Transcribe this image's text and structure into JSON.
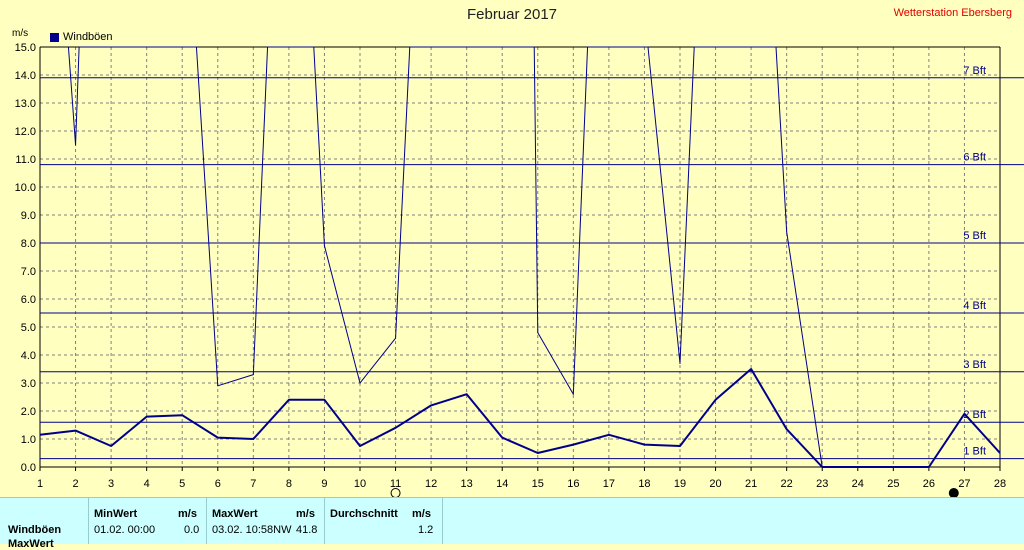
{
  "title": "Februar 2017",
  "station": "Wetterstation Ebersberg",
  "unit_label": "m/s",
  "legend_label": "Windböen",
  "colors": {
    "background": "#ffffc0",
    "series": "#00008b",
    "grid": "#808080",
    "station_text": "#e00000",
    "stats_bg": "#ccffff"
  },
  "chart_data": {
    "type": "line",
    "xlim": [
      1,
      28
    ],
    "ylim": [
      0,
      15
    ],
    "x_ticks": [
      "1",
      "2",
      "3",
      "4",
      "5",
      "6",
      "7",
      "8",
      "9",
      "10",
      "11",
      "12",
      "13",
      "14",
      "15",
      "16",
      "17",
      "18",
      "19",
      "20",
      "21",
      "22",
      "23",
      "24",
      "25",
      "26",
      "27",
      "28"
    ],
    "y_ticks": [
      "0.0",
      "1.0",
      "2.0",
      "3.0",
      "4.0",
      "5.0",
      "6.0",
      "7.0",
      "8.0",
      "9.0",
      "10.0",
      "11.0",
      "12.0",
      "13.0",
      "14.0",
      "15.0"
    ],
    "grid": true,
    "legend_position": "top-left",
    "beaufort_lines": [
      {
        "label": "1 Bft",
        "value": 0.3
      },
      {
        "label": "2 Bft",
        "value": 1.6
      },
      {
        "label": "3 Bft",
        "value": 3.4
      },
      {
        "label": "4 Bft",
        "value": 5.5
      },
      {
        "label": "5 Bft",
        "value": 8.0
      },
      {
        "label": "6 Bft",
        "value": 10.8
      },
      {
        "label": "7 Bft",
        "value": 13.9
      }
    ],
    "series": [
      {
        "name": "Windböen",
        "points": [
          [
            1,
            1.15
          ],
          [
            2,
            1.3
          ],
          [
            3,
            0.75
          ],
          [
            4,
            1.8
          ],
          [
            5,
            1.85
          ],
          [
            6,
            1.05
          ],
          [
            7,
            1.0
          ],
          [
            8,
            2.4
          ],
          [
            9,
            2.4
          ],
          [
            10,
            0.75
          ],
          [
            11,
            1.4
          ],
          [
            12,
            2.2
          ],
          [
            13,
            2.6
          ],
          [
            14,
            1.05
          ],
          [
            15,
            0.5
          ],
          [
            16,
            0.8
          ],
          [
            17,
            1.15
          ],
          [
            18,
            0.8
          ],
          [
            19,
            0.75
          ],
          [
            20,
            2.4
          ],
          [
            21,
            3.5
          ],
          [
            22,
            1.35
          ],
          [
            23,
            0.0
          ],
          [
            24,
            0.0
          ],
          [
            25,
            0.0
          ],
          [
            26,
            0.0
          ],
          [
            27,
            1.9
          ],
          [
            28,
            0.5
          ]
        ]
      },
      {
        "name": "",
        "points": [
          [
            1.8,
            15.0
          ],
          [
            2,
            11.5
          ],
          [
            2.1,
            15.0
          ],
          [
            5.4,
            15.0
          ],
          [
            6,
            2.9
          ],
          [
            7,
            3.3
          ],
          [
            7.4,
            15.0
          ],
          [
            8.7,
            15.0
          ],
          [
            9,
            7.9
          ],
          [
            10,
            3.0
          ],
          [
            11,
            4.6
          ],
          [
            11.4,
            15.0
          ],
          [
            14.9,
            15.0
          ],
          [
            15,
            4.8
          ],
          [
            16,
            2.6
          ],
          [
            16.4,
            15.0
          ],
          [
            18.1,
            15.0
          ],
          [
            19,
            3.7
          ],
          [
            19.4,
            15.0
          ],
          [
            21.7,
            15.0
          ],
          [
            22,
            8.4
          ],
          [
            23,
            0.0
          ]
        ]
      }
    ],
    "markers": [
      {
        "x": 11,
        "symbol": "open-circle"
      },
      {
        "x": 26.7,
        "symbol": "filled-circle"
      }
    ]
  },
  "stats": {
    "row_label": "Windböen",
    "row_label_2": "MaxWert",
    "min": {
      "header": "MinWert",
      "unit": "m/s",
      "date": "01.02.  00:00",
      "value": "0.0"
    },
    "max": {
      "header": "MaxWert",
      "unit": "m/s",
      "date": "03.02.  10:58NW",
      "value": "41.8"
    },
    "avg": {
      "header": "Durchschnitt",
      "unit": "m/s",
      "value": "1.2"
    }
  }
}
